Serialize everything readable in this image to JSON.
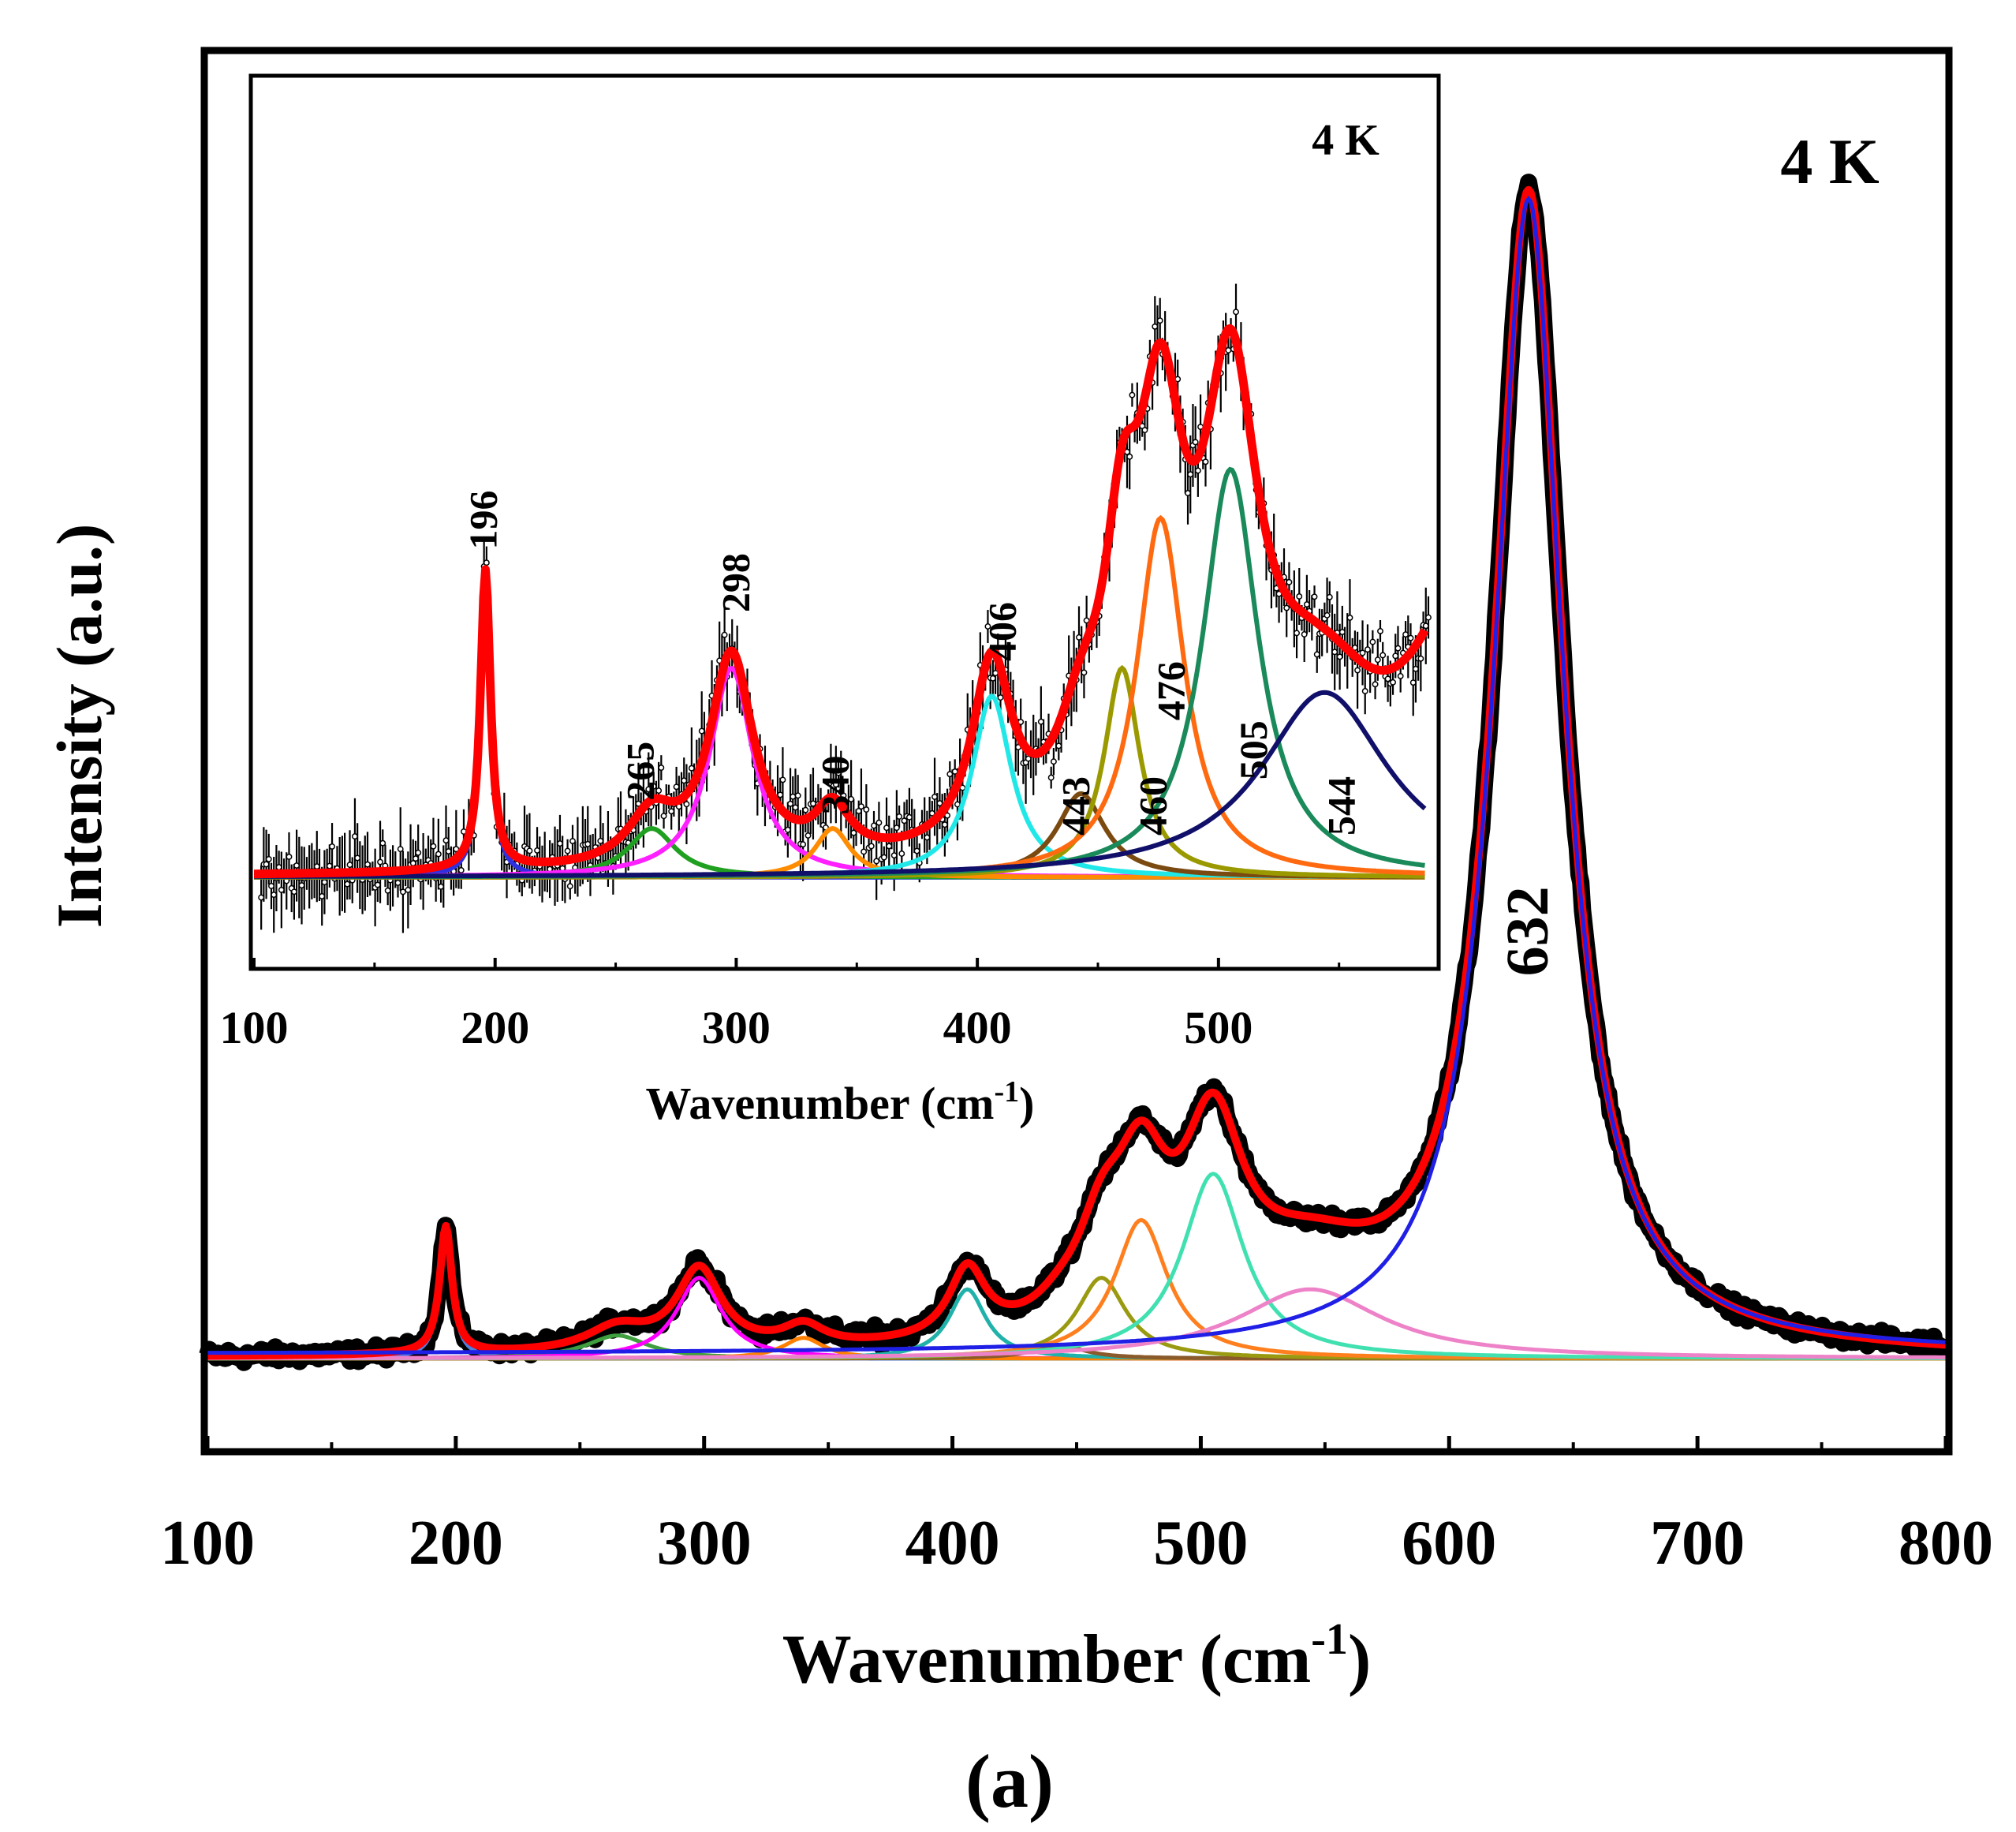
{
  "chart_data": [
    {
      "id": "main",
      "type": "line",
      "title": "4 K",
      "xlabel": "Wavenumber (cm",
      "xlabel_sup": "-1",
      "xlabel_close": ")",
      "ylabel": "Intensity (a.u.)",
      "xlim": [
        100,
        800
      ],
      "xticks": [
        100,
        200,
        300,
        400,
        500,
        600,
        700,
        800
      ],
      "xtick_labels": [
        "100",
        "200",
        "300",
        "400",
        "500",
        "600",
        "700",
        "800"
      ],
      "y_tick_labels_shown": false,
      "grid": false,
      "baseline": 0.0,
      "series": [
        {
          "name": "experimental data",
          "color": "#000000",
          "style": "thick-noisy"
        },
        {
          "name": "cumulative fit",
          "color": "#ff0000",
          "style": "fit"
        },
        {
          "name": "632 peak",
          "color": "#1f1fe6",
          "style": "peak"
        }
      ],
      "peaks": [
        {
          "center": 196,
          "amplitude": 0.11,
          "width": 3,
          "color": "#4f7fdf"
        },
        {
          "center": 265,
          "amplitude": 0.02,
          "width": 15,
          "color": "#3f9f3f"
        },
        {
          "center": 298,
          "amplitude": 0.07,
          "width": 11,
          "color": "#ff00ff"
        },
        {
          "center": 340,
          "amplitude": 0.018,
          "width": 10,
          "color": "#ff7f00"
        },
        {
          "center": 406,
          "amplitude": 0.06,
          "width": 9,
          "color": "#20b2aa"
        },
        {
          "center": 443,
          "amplitude": 0.012,
          "width": 12,
          "color": "#8b5a2b"
        },
        {
          "center": 460,
          "amplitude": 0.07,
          "width": 12,
          "color": "#9a9a10"
        },
        {
          "center": 476,
          "amplitude": 0.12,
          "width": 13,
          "color": "#ff7f1f"
        },
        {
          "center": 505,
          "amplitude": 0.16,
          "width": 15,
          "color": "#40e0b0"
        },
        {
          "center": 544,
          "amplitude": 0.06,
          "width": 35,
          "color": "#ee82c8"
        },
        {
          "center": 632,
          "amplitude": 1.0,
          "width": 17,
          "color": "#1f1fe6"
        }
      ],
      "annotations": [
        {
          "text": "632",
          "x": 632
        }
      ]
    },
    {
      "id": "inset",
      "type": "line",
      "title": "4 K",
      "xlabel": "Wavenumber (cm",
      "xlabel_sup": "-1",
      "xlabel_close": ")",
      "xlim": [
        100,
        590
      ],
      "xticks": [
        100,
        200,
        300,
        400,
        500
      ],
      "xtick_labels": [
        "100",
        "200",
        "300",
        "400",
        "500"
      ],
      "grid": false,
      "baseline": 0.0,
      "series": [
        {
          "name": "experimental data with error bars",
          "color": "#000000",
          "style": "scatter-errorbar"
        },
        {
          "name": "cumulative fit",
          "color": "#ff0000",
          "style": "fit"
        }
      ],
      "peaks": [
        {
          "center": 196,
          "amplitude": 0.86,
          "width": 2.5,
          "color": "#3030e0",
          "label": "196"
        },
        {
          "center": 265,
          "amplitude": 0.14,
          "width": 12,
          "color": "#20a020",
          "label": "265"
        },
        {
          "center": 298,
          "amplitude": 0.6,
          "width": 11,
          "color": "#ff20ff",
          "label": "298"
        },
        {
          "center": 340,
          "amplitude": 0.14,
          "width": 9,
          "color": "#ff8c00",
          "label": "340"
        },
        {
          "center": 406,
          "amplitude": 0.52,
          "width": 10,
          "color": "#20e8e8",
          "label": "406"
        },
        {
          "center": 443,
          "amplitude": 0.24,
          "width": 12,
          "color": "#7a4a10",
          "label": "443"
        },
        {
          "center": 460,
          "amplitude": 0.6,
          "width": 9,
          "color": "#9a9a00",
          "label": "460"
        },
        {
          "center": 476,
          "amplitude": 1.03,
          "width": 12,
          "color": "#ff6a10",
          "label": "476"
        },
        {
          "center": 505,
          "amplitude": 1.17,
          "width": 14,
          "color": "#1a8a5a",
          "label": "505"
        },
        {
          "center": 544,
          "amplitude": 0.53,
          "width": 32,
          "color": "#10106a",
          "label": "544"
        }
      ]
    }
  ],
  "panel_label": "(a)"
}
